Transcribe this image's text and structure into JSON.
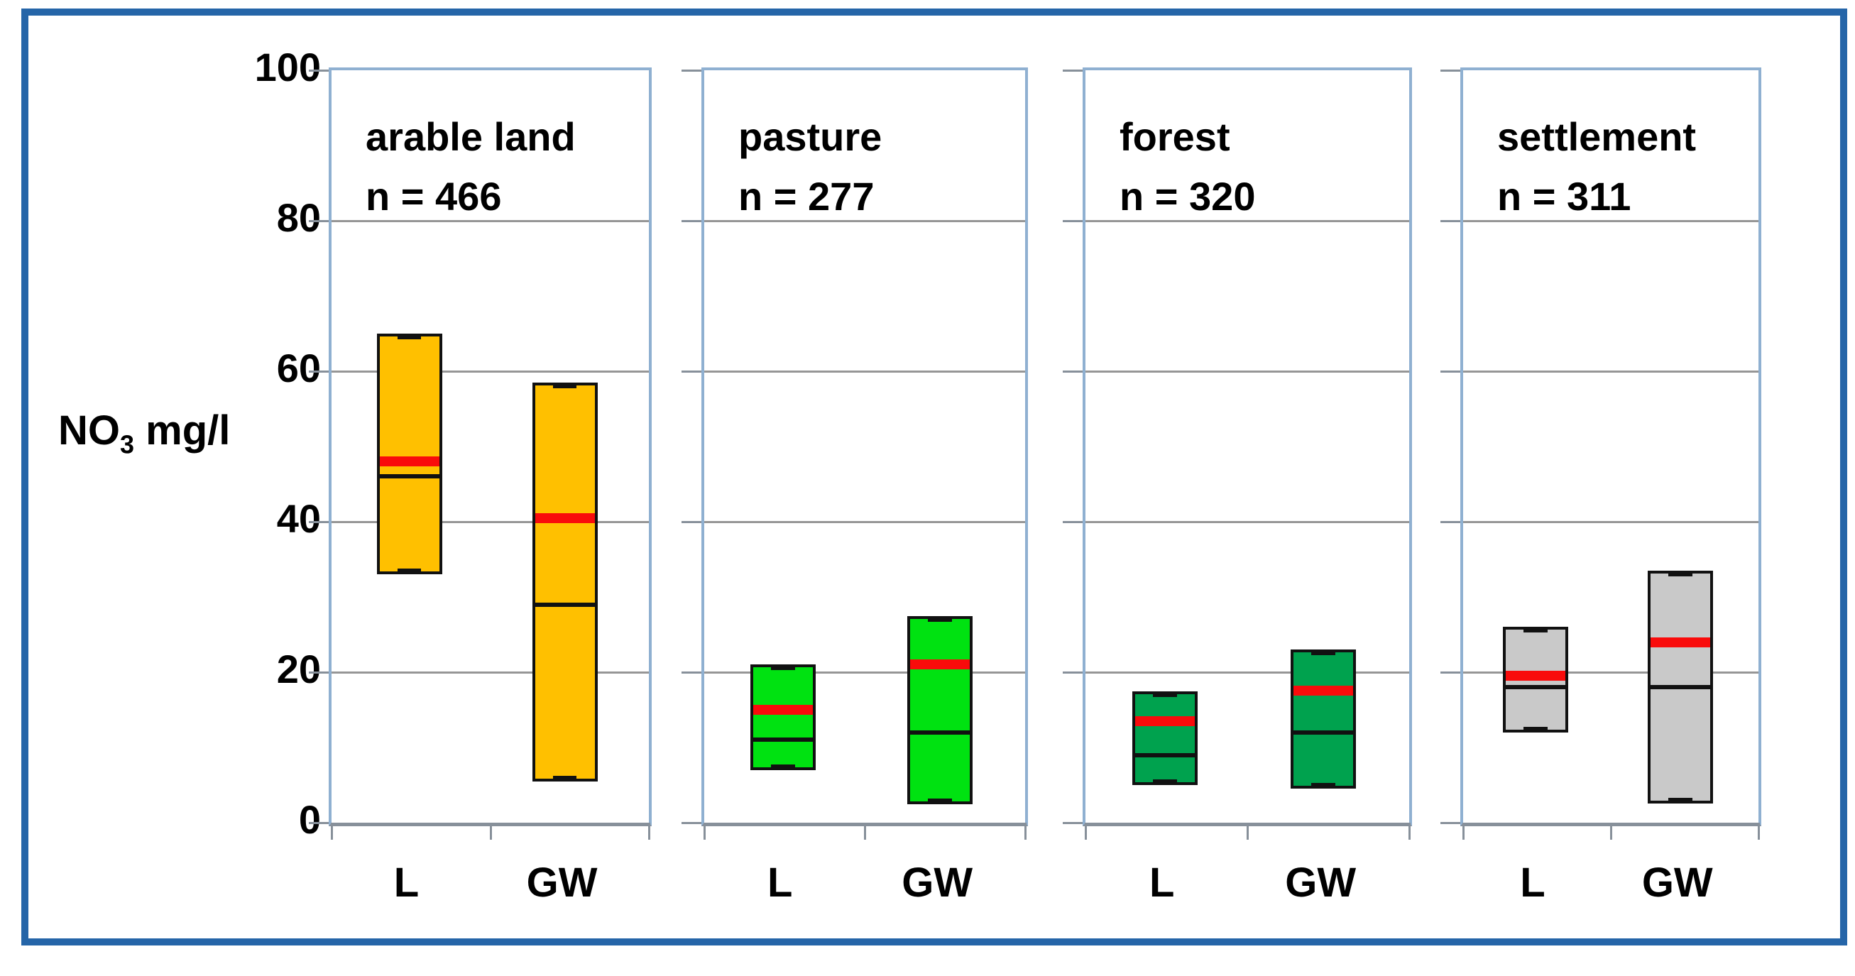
{
  "figure": {
    "ylabel": {
      "main": "NO",
      "sub": "3",
      "unit": "mg/l"
    },
    "yticks": [
      "100",
      "80",
      "60",
      "40",
      "20",
      "0"
    ]
  },
  "chart_data": {
    "type": "bar",
    "subtype": "floating-box-plot",
    "title": "",
    "ylabel": "NO3 mg/l",
    "ylim": [
      0,
      100
    ],
    "ytick_values": [
      0,
      20,
      40,
      60,
      80,
      100
    ],
    "grid": true,
    "categories": [
      "L",
      "GW"
    ],
    "line_colors": {
      "mean_red": "#F90B0B",
      "median_black": "#111111",
      "bar_border": "#111111"
    },
    "panels": [
      {
        "title": "arable land",
        "n_label": "n = 466",
        "n": 466,
        "fill_color": "#FFC000",
        "bars": [
          {
            "label": "L",
            "min": 33,
            "max": 65,
            "median_black": 46,
            "mean_red": 48
          },
          {
            "label": "GW",
            "min": 5.5,
            "max": 58.5,
            "median_black": 29,
            "mean_red": 40.5
          }
        ]
      },
      {
        "title": "pasture",
        "n_label": "n = 277",
        "n": 277,
        "fill_color": "#00E211",
        "bars": [
          {
            "label": "L",
            "min": 7,
            "max": 21,
            "median_black": 11,
            "mean_red": 15
          },
          {
            "label": "GW",
            "min": 2.5,
            "max": 27.5,
            "median_black": 12,
            "mean_red": 21
          }
        ]
      },
      {
        "title": "forest",
        "n_label": "n = 320",
        "n": 320,
        "fill_color": "#00A24E",
        "bars": [
          {
            "label": "L",
            "min": 5,
            "max": 17.5,
            "median_black": 9,
            "mean_red": 13.5
          },
          {
            "label": "GW",
            "min": 4.5,
            "max": 23,
            "median_black": 12,
            "mean_red": 17.5
          }
        ]
      },
      {
        "title": "settlement",
        "n_label": "n = 311",
        "n": 311,
        "fill_color": "#C9C9C9",
        "bars": [
          {
            "label": "L",
            "min": 12,
            "max": 26,
            "median_black": 18,
            "mean_red": 19.5
          },
          {
            "label": "GW",
            "min": 2.5,
            "max": 33.5,
            "median_black": 18,
            "mean_red": 24
          }
        ]
      }
    ]
  }
}
